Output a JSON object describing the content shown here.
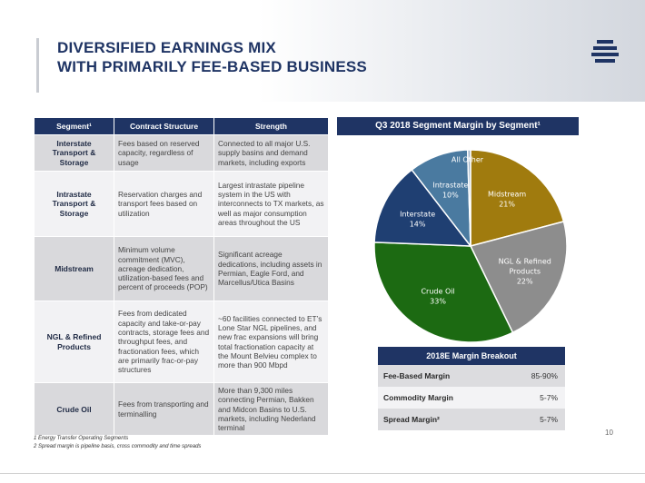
{
  "title": {
    "line1": "DIVERSIFIED EARNINGS MIX",
    "line2": "WITH PRIMARILY FEE-BASED BUSINESS"
  },
  "table": {
    "headers": [
      "Segment¹",
      "Contract Structure",
      "Strength"
    ],
    "rows": [
      {
        "segment": "Interstate Transport & Storage",
        "contract": "Fees based on reserved capacity, regardless of usage",
        "strength": "Connected to all major U.S. supply basins and demand markets, including exports"
      },
      {
        "segment": "Intrastate Transport & Storage",
        "contract": "Reservation charges and transport fees based on utilization",
        "strength": "Largest intrastate pipeline system in the US with interconnects to TX markets, as well as major consumption areas throughout the US"
      },
      {
        "segment": "Midstream",
        "contract": "Minimum volume commitment (MVC), acreage dedication, utilization-based fees and percent of proceeds (POP)",
        "strength": "Significant acreage dedications, including assets in Permian, Eagle Ford, and Marcellus/Utica Basins"
      },
      {
        "segment": "NGL & Refined Products",
        "contract": "Fees from dedicated capacity and take-or-pay contracts, storage fees and throughput fees, and fractionation fees, which are primarily frac-or-pay structures",
        "strength": "~60 facilities connected to ET’s Lone Star NGL pipelines, and new frac expansions will bring total fractionation capacity at the Mount Belvieu complex to more than 900 Mbpd"
      },
      {
        "segment": "Crude Oil",
        "contract": "Fees from transporting and terminalling",
        "strength": "More than 9,300 miles connecting Permian, Bakken and Midcon Basins to U.S. markets, including Nederland terminal"
      }
    ]
  },
  "chart_title": "Q3 2018 Segment Margin by Segment¹",
  "chart_data": {
    "type": "pie",
    "title": "Q3 2018 Segment Margin by Segment¹",
    "slices": [
      {
        "label": "Midstream",
        "value": 21,
        "pct_label": "21%",
        "color": "#a07b0e"
      },
      {
        "label": "NGL & Refined Products",
        "value": 22,
        "pct_label": "22%",
        "color": "#8d8d8d"
      },
      {
        "label": "Crude Oil",
        "value": 33,
        "pct_label": "33%",
        "color": "#1c6a12"
      },
      {
        "label": "Interstate",
        "value": 14,
        "pct_label": "14%",
        "color": "#1f3f72"
      },
      {
        "label": "Intrastate",
        "value": 10,
        "pct_label": "10%",
        "color": "#4a7aa0"
      },
      {
        "label": "All Other",
        "value": 0.5,
        "pct_label": "",
        "color": "#9fb3c8"
      }
    ]
  },
  "breakout": {
    "title": "2018E Margin Breakout",
    "rows": [
      {
        "label": "Fee-Based Margin",
        "value": "85-90%"
      },
      {
        "label": "Commodity Margin",
        "value": "5-7%"
      },
      {
        "label": "Spread Margin²",
        "value": "5-7%"
      }
    ]
  },
  "footnotes": {
    "f1": "1 Energy Transfer Operating Segments",
    "f2": "2 Spread margin is pipeline basis, cross commodity and time spreads"
  },
  "page_number": "10"
}
